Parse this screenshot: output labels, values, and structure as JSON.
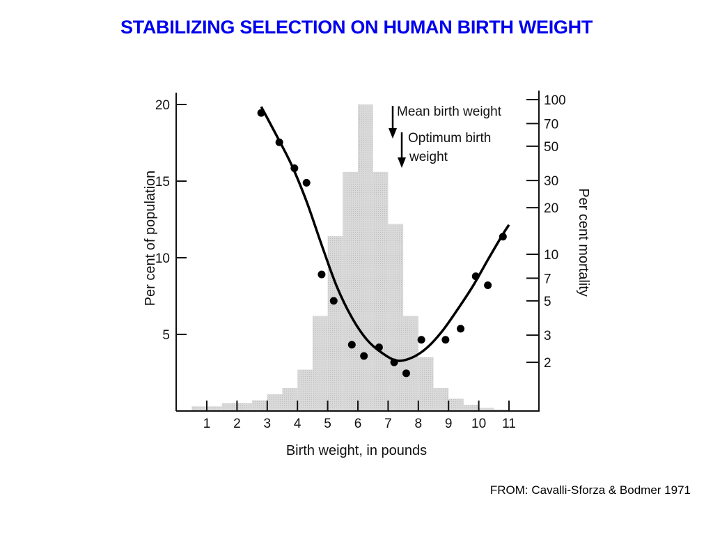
{
  "page": {
    "title": "STABILIZING SELECTION ON HUMAN BIRTH WEIGHT",
    "source": "FROM: Cavalli-Sforza & Bodmer 1971"
  },
  "chart_data": {
    "type": "bar",
    "xlabel": "Birth weight, in pounds",
    "ylabel": "Per cent of population",
    "y2label": "Per cent mortality",
    "xlim": [
      0.5,
      11.5
    ],
    "ylim": [
      0,
      21
    ],
    "y2lim": [
      1.2,
      130
    ],
    "y2scale": "log",
    "x_ticks": [
      "1",
      "2",
      "3",
      "4",
      "5",
      "6",
      "7",
      "8",
      "9",
      "10",
      "11"
    ],
    "y_ticks": [
      "5",
      "10",
      "15",
      "20"
    ],
    "y2_ticks": [
      "2",
      "3",
      "5",
      "7",
      "10",
      "20",
      "30",
      "50",
      "70",
      "100"
    ],
    "annotations": {
      "mean_label": "Mean birth weight",
      "optimum_label_1": "Optimum birth",
      "optimum_label_2": "weight",
      "mean_x": 7.2,
      "optimum_x": 7.5
    },
    "histogram": {
      "name": "Per cent of population",
      "bin_start": [
        0.5,
        1.5,
        2.5,
        3.0,
        3.5,
        4.0,
        4.5,
        5.0,
        5.5,
        6.0,
        6.5,
        7.0,
        7.5,
        8.0,
        8.5,
        9.0,
        9.5,
        10.0,
        10.5
      ],
      "bin_end": [
        1.5,
        2.5,
        3.0,
        3.5,
        4.0,
        4.5,
        5.0,
        5.5,
        6.0,
        6.5,
        7.0,
        7.5,
        8.0,
        8.5,
        9.0,
        9.5,
        10.0,
        10.5,
        11.0
      ],
      "values": [
        0.3,
        0.5,
        0.7,
        1.1,
        1.5,
        2.7,
        6.2,
        11.4,
        15.6,
        20.0,
        15.6,
        12.2,
        6.2,
        3.5,
        1.5,
        0.8,
        0.4,
        0.2,
        0.1
      ]
    },
    "mortality_points": {
      "name": "Per cent mortality",
      "x": [
        2.8,
        3.4,
        3.9,
        4.3,
        4.8,
        5.2,
        5.8,
        6.2,
        6.7,
        7.2,
        7.6,
        8.1,
        8.9,
        9.4,
        9.9,
        10.3,
        10.8
      ],
      "y": [
        82,
        53,
        36,
        29,
        7.4,
        5.0,
        2.6,
        2.2,
        2.5,
        2.0,
        1.7,
        2.8,
        2.8,
        3.3,
        7.2,
        6.3,
        13
      ]
    },
    "fitted_curve": {
      "name": "Fitted mortality curve",
      "x": [
        2.8,
        3.3,
        3.8,
        4.3,
        4.8,
        5.3,
        5.8,
        6.3,
        6.8,
        7.3,
        7.8,
        8.3,
        8.8,
        9.3,
        9.8,
        10.3,
        10.8,
        11.0
      ],
      "y": [
        90,
        59,
        38,
        22,
        11.5,
        6.2,
        3.9,
        2.8,
        2.3,
        2.05,
        2.15,
        2.5,
        3.2,
        4.4,
        6.2,
        9.2,
        13.5,
        15.5
      ]
    }
  }
}
